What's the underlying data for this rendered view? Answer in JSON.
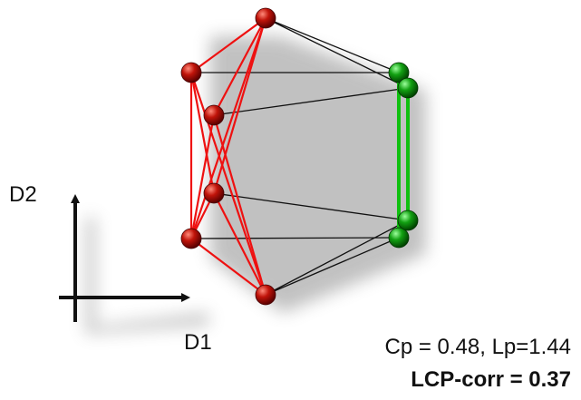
{
  "axes": {
    "y_label": "D2",
    "x_label": "D1"
  },
  "caption": {
    "line1": "Cp = 0.48, Lp=1.44",
    "line2": "LCP-corr = 0.37"
  }
}
